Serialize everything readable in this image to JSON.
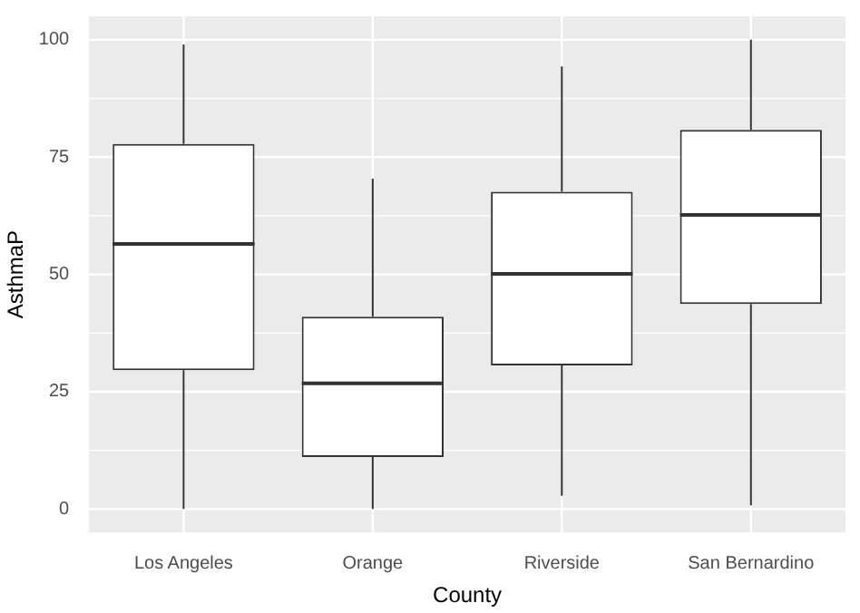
{
  "chart_data": {
    "type": "box",
    "xlabel": "County",
    "ylabel": "AsthmaP",
    "categories": [
      "Los Angeles",
      "Orange",
      "Riverside",
      "San Bernardino"
    ],
    "boxes": [
      {
        "low": 0,
        "q1": 29.6,
        "median": 56.5,
        "q3": 77.8,
        "high": 99
      },
      {
        "low": 0,
        "q1": 11.1,
        "median": 26.8,
        "q3": 41,
        "high": 70.4
      },
      {
        "low": 2.8,
        "q1": 30.6,
        "median": 50.1,
        "q3": 67.6,
        "high": 94.3
      },
      {
        "low": 0.8,
        "q1": 43.7,
        "median": 62.7,
        "q3": 80.8,
        "high": 100
      }
    ],
    "color": "#333333",
    "ylim": [
      -5,
      105
    ],
    "yticks": [
      0,
      25,
      50,
      75,
      100
    ],
    "grid": true,
    "legend": false
  }
}
